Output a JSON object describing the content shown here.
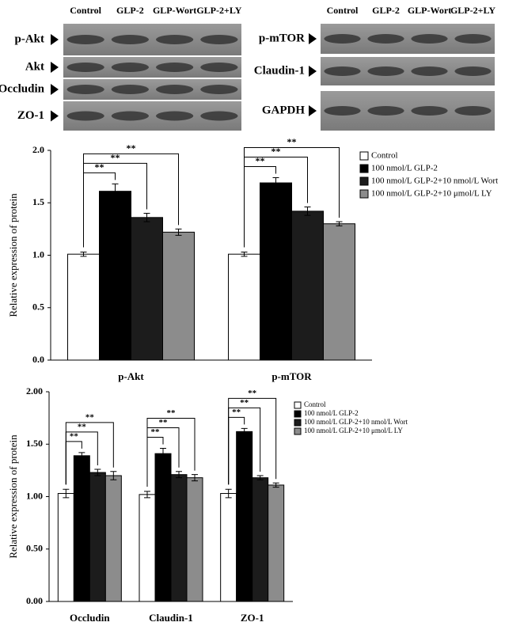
{
  "blots": {
    "left": {
      "columns": [
        "Control",
        "GLP-2",
        "GLP-Wort",
        "GLP-2+LY"
      ],
      "rows": [
        "p-Akt",
        "Akt",
        "Occludin",
        "ZO-1"
      ]
    },
    "right": {
      "columns": [
        "Control",
        "GLP-2",
        "GLP-Wort",
        "GLP-2+LY"
      ],
      "rows": [
        "p-mTOR",
        "Claudin-1",
        "GAPDH"
      ]
    }
  },
  "chart_data": [
    {
      "type": "bar",
      "y_label": "Relative expression of protein",
      "categories": [
        "p-Akt",
        "p-mTOR"
      ],
      "series": [
        {
          "name": "Control",
          "color": "#ffffff",
          "values": [
            1.01,
            1.01
          ],
          "errors": [
            0.02,
            0.02
          ]
        },
        {
          "name": "100 nmol/L GLP-2",
          "color": "#000000",
          "values": [
            1.61,
            1.69
          ],
          "errors": [
            0.07,
            0.05
          ]
        },
        {
          "name": "100 nmol/L GLP-2+10 nmol/L Wort",
          "color": "#1c1c1c",
          "values": [
            1.36,
            1.42
          ],
          "errors": [
            0.04,
            0.04
          ]
        },
        {
          "name": "100 nmol/L GLP-2+10 μmol/L LY",
          "color": "#8c8c8c",
          "values": [
            1.22,
            1.3
          ],
          "errors": [
            0.03,
            0.02
          ]
        }
      ],
      "significance": [
        "**",
        "**",
        "**"
      ],
      "ylim": [
        0,
        2
      ],
      "yticks": [
        {
          "value": 0,
          "label": "0.0"
        },
        0.5,
        {
          "value": 1,
          "label": "1.0"
        },
        1.5,
        {
          "value": 2,
          "label": "2.0"
        }
      ]
    },
    {
      "type": "bar",
      "y_label": "Relative expression of protein",
      "categories": [
        "Occludin",
        "Claudin-1",
        "ZO-1"
      ],
      "series": [
        {
          "name": "Control",
          "color": "#ffffff",
          "values": [
            1.03,
            1.02,
            1.03
          ],
          "errors": [
            0.04,
            0.03,
            0.04
          ]
        },
        {
          "name": "100 nmol/L GLP-2",
          "color": "#000000",
          "values": [
            1.39,
            1.41,
            1.62
          ],
          "errors": [
            0.03,
            0.05,
            0.03
          ]
        },
        {
          "name": "100 nmol/L GLP-2+10 nmol/L Wort",
          "color": "#1c1c1c",
          "values": [
            1.23,
            1.21,
            1.18
          ],
          "errors": [
            0.03,
            0.03,
            0.02
          ]
        },
        {
          "name": "100 nmol/L GLP-2+10 μmol/L LY",
          "color": "#8c8c8c",
          "values": [
            1.2,
            1.18,
            1.11
          ],
          "errors": [
            0.04,
            0.03,
            0.02
          ]
        }
      ],
      "significance": [
        "**",
        "**",
        "**"
      ],
      "ylim": [
        0,
        2
      ],
      "yticks": [
        {
          "value": 0,
          "label": "0.00"
        },
        {
          "value": 0.5,
          "label": "0.50"
        },
        {
          "value": 1,
          "label": "1.00"
        },
        {
          "value": 1.5,
          "label": "1.50"
        },
        {
          "value": 2,
          "label": "2.00"
        }
      ]
    }
  ]
}
